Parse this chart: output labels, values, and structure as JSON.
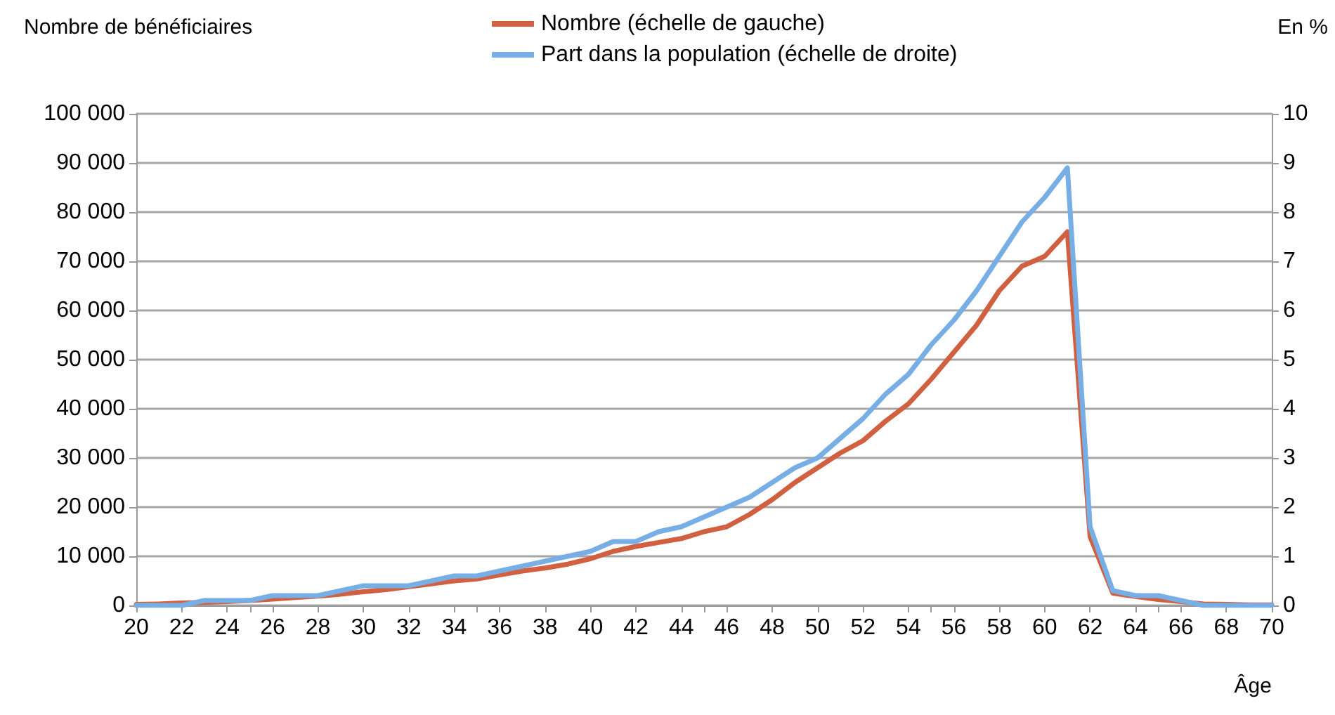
{
  "chart_data": {
    "type": "line",
    "ylabel": "Nombre de bénéficiaires",
    "y2label": "En %",
    "xlabel": "Âge",
    "x": [
      20,
      21,
      22,
      23,
      24,
      25,
      26,
      27,
      28,
      29,
      30,
      31,
      32,
      33,
      34,
      35,
      36,
      37,
      38,
      39,
      40,
      41,
      42,
      43,
      44,
      45,
      46,
      47,
      48,
      49,
      50,
      51,
      52,
      53,
      54,
      55,
      56,
      57,
      58,
      59,
      60,
      61,
      62,
      63,
      64,
      65,
      66,
      67,
      68,
      69,
      70
    ],
    "series": [
      {
        "name": "Nombre (échelle de gauche)",
        "color": "#d0603f",
        "values": [
          200,
          300,
          500,
          600,
          800,
          1000,
          1300,
          1600,
          1900,
          2300,
          2800,
          3200,
          3800,
          4400,
          5000,
          5400,
          6200,
          7000,
          7600,
          8400,
          9500,
          11000,
          12000,
          12800,
          13600,
          15000,
          16000,
          18500,
          21500,
          25000,
          28000,
          31000,
          33500,
          37500,
          41000,
          46000,
          51500,
          57000,
          64000,
          69000,
          71000,
          76000,
          14000,
          2500,
          1800,
          1200,
          800,
          300,
          200,
          100,
          100
        ]
      },
      {
        "name": "Part dans la population (échelle de droite)",
        "color": "#78aee6",
        "axis": "y2",
        "values": [
          0,
          0,
          0,
          0.1,
          0.1,
          0.1,
          0.2,
          0.2,
          0.2,
          0.3,
          0.4,
          0.4,
          0.4,
          0.5,
          0.6,
          0.6,
          0.7,
          0.8,
          0.9,
          1.0,
          1.1,
          1.3,
          1.3,
          1.5,
          1.6,
          1.8,
          2.0,
          2.2,
          2.5,
          2.8,
          3.0,
          3.4,
          3.8,
          4.3,
          4.7,
          5.3,
          5.8,
          6.4,
          7.1,
          7.8,
          8.3,
          8.9,
          1.6,
          0.3,
          0.2,
          0.2,
          0.1,
          0,
          0,
          0,
          0
        ]
      }
    ],
    "xlim": [
      20,
      70
    ],
    "xticks": [
      20,
      22,
      24,
      26,
      28,
      30,
      32,
      34,
      36,
      38,
      40,
      42,
      44,
      46,
      48,
      50,
      52,
      54,
      56,
      58,
      60,
      62,
      64,
      66,
      68,
      70
    ],
    "ylim": [
      0,
      100000
    ],
    "yticks": [
      0,
      {
        "value": 10000,
        "label": "10 000"
      },
      {
        "value": 20000,
        "label": "20 000"
      },
      {
        "value": 30000,
        "label": "30 000"
      },
      {
        "value": 40000,
        "label": "40 000"
      },
      {
        "value": 50000,
        "label": "50 000"
      },
      {
        "value": 60000,
        "label": "60 000"
      },
      {
        "value": 70000,
        "label": "70 000"
      },
      {
        "value": 80000,
        "label": "80 000"
      },
      {
        "value": 90000,
        "label": "90 000"
      },
      {
        "value": 100000,
        "label": "100 000"
      }
    ],
    "y2lim": [
      0,
      10
    ],
    "y2ticks": [
      0,
      1,
      2,
      3,
      4,
      5,
      6,
      7,
      8,
      9,
      10
    ],
    "grid": "y",
    "legend": "top",
    "marker": "none",
    "line_style": "solid"
  }
}
